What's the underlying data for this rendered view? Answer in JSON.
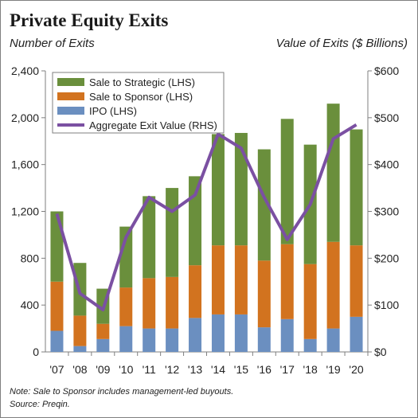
{
  "title": "Private Equity Exits",
  "left_axis_title": "Number of Exits",
  "right_axis_title": "Value of Exits ($ Billions)",
  "notes": {
    "note": "Note: Sale to Sponsor includes management-led buyouts.",
    "source": "Source: Preqin."
  },
  "colors": {
    "strategic": "#6a8f3c",
    "sponsor": "#d2731f",
    "ipo": "#6b8fc0",
    "aggregate": "#7b50a2"
  },
  "chart_data": {
    "type": "bar",
    "stacked": true,
    "categories": [
      "'07",
      "'08",
      "'09",
      "'10",
      "'11",
      "'12",
      "'13",
      "'14",
      "'15",
      "'16",
      "'17",
      "'18",
      "'19",
      "'20"
    ],
    "series": [
      {
        "name": "IPO (LHS)",
        "axis": "left",
        "values": [
          180,
          50,
          110,
          220,
          200,
          200,
          290,
          320,
          320,
          210,
          280,
          110,
          200,
          300
        ]
      },
      {
        "name": "Sale to Sponsor (LHS)",
        "axis": "left",
        "values": [
          420,
          260,
          130,
          330,
          430,
          440,
          450,
          590,
          590,
          570,
          640,
          640,
          740,
          610
        ]
      },
      {
        "name": "Sale to Strategic (LHS)",
        "axis": "left",
        "values": [
          600,
          450,
          300,
          520,
          700,
          760,
          760,
          950,
          960,
          950,
          1070,
          1020,
          1180,
          990
        ]
      },
      {
        "name": "Aggregate Exit Value (RHS)",
        "type": "line",
        "axis": "right",
        "values": [
          295,
          125,
          90,
          245,
          330,
          300,
          335,
          465,
          435,
          330,
          240,
          315,
          455,
          485
        ]
      }
    ],
    "legend_order": [
      "Sale to Strategic (LHS)",
      "Sale to Sponsor (LHS)",
      "IPO (LHS)",
      "Aggregate Exit Value (RHS)"
    ],
    "ylim": [
      0,
      2400
    ],
    "yticks": [
      "0",
      "400",
      "800",
      "1,200",
      "1,600",
      "2,000",
      "2,400"
    ],
    "ytick_values": [
      0,
      400,
      800,
      1200,
      1600,
      2000,
      2400
    ],
    "y2lim": [
      0,
      600
    ],
    "y2ticks": [
      "$0",
      "$100",
      "$200",
      "$300",
      "$400",
      "$500",
      "$600"
    ],
    "y2tick_values": [
      0,
      100,
      200,
      300,
      400,
      500,
      600
    ],
    "grid": false,
    "legend_position": "top-left"
  }
}
